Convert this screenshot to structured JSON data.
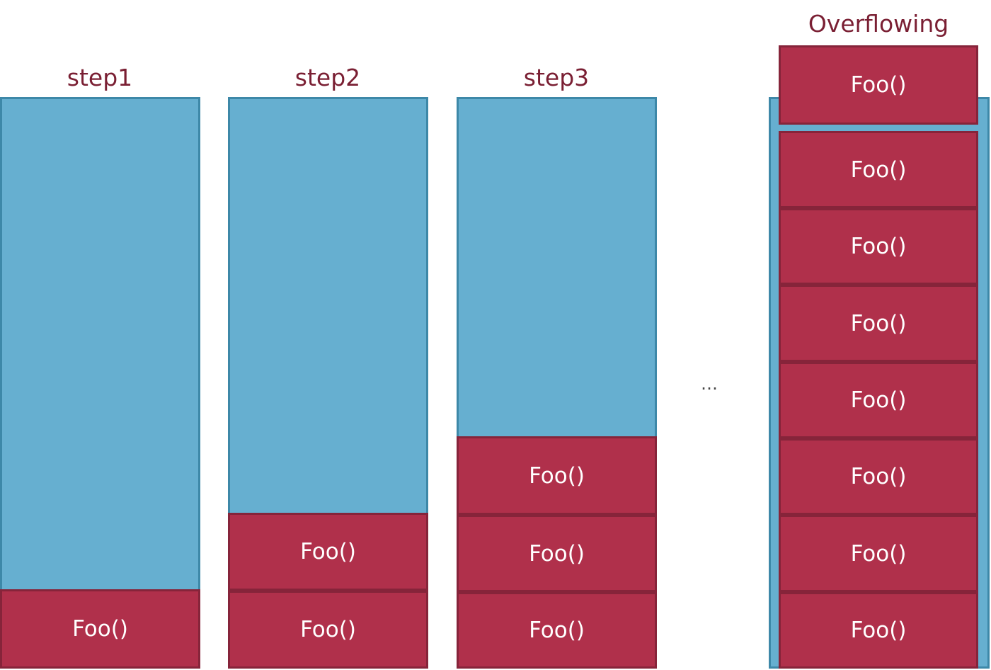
{
  "frame_label": "Foo()",
  "ellipsis": "…",
  "steps": [
    {
      "title": "step1",
      "frames": 1
    },
    {
      "title": "step2",
      "frames": 2
    },
    {
      "title": "step3",
      "frames": 3
    },
    {
      "title": "Overflowing",
      "frames": 7,
      "overflow_frames": 1
    }
  ],
  "colors": {
    "stack": "#66afd0",
    "frame": "#b0304b",
    "title": "#7a1f33"
  }
}
